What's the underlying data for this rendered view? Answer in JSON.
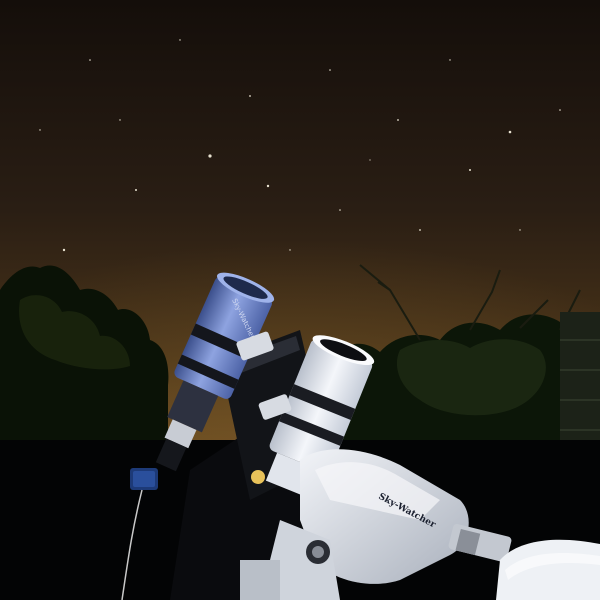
{
  "scene": {
    "subject": "twin refractor telescopes on equatorial mount at night",
    "mount_label": "Sky-Watcher",
    "tube_label": "Sky-Watcher"
  },
  "colors": {
    "sky_top": "#1a120c",
    "sky_mid": "#3a2a1a",
    "sky_horizon": "#6a4a20",
    "foliage": "#0c1608",
    "foliage_lit": "#2c3a14",
    "blue_tube": "#6f86c9",
    "white_tube": "#e8ecf2",
    "mount_white": "#dfe3ea"
  }
}
